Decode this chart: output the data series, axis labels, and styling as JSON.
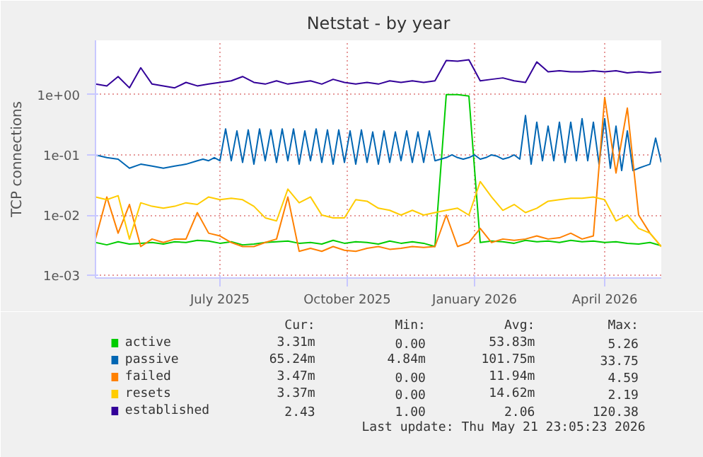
{
  "chart_data": {
    "type": "line",
    "title": "Netstat - by year",
    "ylabel": "TCP connections",
    "log": "y",
    "grid": true,
    "legend": "bottom",
    "xlim": [
      "2025-04-16",
      "2026-05-21"
    ],
    "ylim": [
      0.0009,
      8
    ],
    "xticks": [
      {
        "value": "2025-07-13",
        "label": "July 2025"
      },
      {
        "value": "2025-10-11",
        "label": "October 2025"
      },
      {
        "value": "2026-01-09",
        "label": "January 2026"
      },
      {
        "value": "2026-04-11",
        "label": "April 2026"
      }
    ],
    "yticks": [
      {
        "value": 0.001,
        "label": "1e-03"
      },
      {
        "value": 0.01,
        "label": "1e-02"
      },
      {
        "value": 0.1,
        "label": "1e-01"
      },
      {
        "value": 1,
        "label": "1e+00"
      }
    ],
    "x": [
      "2025-04-16",
      "2025-04-24",
      "2025-05-02",
      "2025-05-10",
      "2025-05-18",
      "2025-05-26",
      "2025-06-03",
      "2025-06-11",
      "2025-06-19",
      "2025-06-27",
      "2025-07-05",
      "2025-07-13",
      "2025-07-21",
      "2025-07-29",
      "2025-08-06",
      "2025-08-14",
      "2025-08-22",
      "2025-08-30",
      "2025-09-07",
      "2025-09-15",
      "2025-09-23",
      "2025-10-01",
      "2025-10-09",
      "2025-10-17",
      "2025-10-25",
      "2025-11-02",
      "2025-11-10",
      "2025-11-18",
      "2025-11-26",
      "2025-12-04",
      "2025-12-12",
      "2025-12-20",
      "2025-12-28",
      "2026-01-05",
      "2026-01-13",
      "2026-01-21",
      "2026-01-29",
      "2026-02-06",
      "2026-02-14",
      "2026-02-22",
      "2026-03-02",
      "2026-03-10",
      "2026-03-18",
      "2026-03-26",
      "2026-04-03",
      "2026-04-11",
      "2026-04-19",
      "2026-04-27",
      "2026-05-05",
      "2026-05-13",
      "2026-05-21"
    ],
    "series": [
      {
        "name": "active",
        "color": "#00cc00",
        "values": [
          0.0035,
          0.0032,
          0.0036,
          0.0033,
          0.0034,
          0.0035,
          0.0033,
          0.0036,
          0.0035,
          0.0038,
          0.0037,
          0.0034,
          0.0036,
          0.0032,
          0.0033,
          0.0035,
          0.0036,
          0.0037,
          0.0034,
          0.0035,
          0.0033,
          0.0038,
          0.0034,
          0.0036,
          0.0035,
          0.0033,
          0.0037,
          0.0034,
          0.0036,
          0.0034,
          0.003,
          1.0,
          1.0,
          0.95,
          0.0035,
          0.0037,
          0.0036,
          0.0034,
          0.0038,
          0.0036,
          0.0037,
          0.0035,
          0.0038,
          0.0036,
          0.0037,
          0.0035,
          0.0036,
          0.0034,
          0.0033,
          0.0035,
          0.0031
        ]
      },
      {
        "name": "passive",
        "color": "#0066b3",
        "x": [
          "2025-04-16",
          "2025-04-24",
          "2025-05-02",
          "2025-05-10",
          "2025-05-18",
          "2025-05-26",
          "2025-06-03",
          "2025-06-11",
          "2025-06-19",
          "2025-06-27",
          "2025-07-01",
          "2025-07-05",
          "2025-07-09",
          "2025-07-13",
          "2025-07-17",
          "2025-07-21",
          "2025-07-25",
          "2025-07-29",
          "2025-08-02",
          "2025-08-06",
          "2025-08-10",
          "2025-08-14",
          "2025-08-18",
          "2025-08-22",
          "2025-08-26",
          "2025-08-30",
          "2025-09-03",
          "2025-09-07",
          "2025-09-11",
          "2025-09-15",
          "2025-09-19",
          "2025-09-23",
          "2025-09-27",
          "2025-10-01",
          "2025-10-05",
          "2025-10-09",
          "2025-10-13",
          "2025-10-17",
          "2025-10-21",
          "2025-10-25",
          "2025-10-29",
          "2025-11-02",
          "2025-11-06",
          "2025-11-10",
          "2025-11-14",
          "2025-11-18",
          "2025-11-22",
          "2025-11-26",
          "2025-11-30",
          "2025-12-04",
          "2025-12-08",
          "2025-12-12",
          "2025-12-16",
          "2025-12-20",
          "2025-12-24",
          "2025-12-28",
          "2026-01-01",
          "2026-01-05",
          "2026-01-09",
          "2026-01-13",
          "2026-01-17",
          "2026-01-21",
          "2026-01-25",
          "2026-01-29",
          "2026-02-02",
          "2026-02-06",
          "2026-02-10",
          "2026-02-14",
          "2026-02-18",
          "2026-02-22",
          "2026-02-26",
          "2026-03-02",
          "2026-03-06",
          "2026-03-10",
          "2026-03-14",
          "2026-03-18",
          "2026-03-22",
          "2026-03-26",
          "2026-03-30",
          "2026-04-03",
          "2026-04-07",
          "2026-04-11",
          "2026-04-15",
          "2026-04-19",
          "2026-04-23",
          "2026-04-27",
          "2026-05-01",
          "2026-05-05",
          "2026-05-09",
          "2026-05-13",
          "2026-05-17",
          "2026-05-21"
        ],
        "values": [
          0.1,
          0.09,
          0.085,
          0.06,
          0.07,
          0.065,
          0.06,
          0.065,
          0.07,
          0.08,
          0.085,
          0.08,
          0.09,
          0.08,
          0.27,
          0.08,
          0.25,
          0.075,
          0.26,
          0.07,
          0.27,
          0.08,
          0.26,
          0.075,
          0.27,
          0.08,
          0.27,
          0.07,
          0.25,
          0.08,
          0.27,
          0.075,
          0.26,
          0.07,
          0.26,
          0.075,
          0.25,
          0.07,
          0.26,
          0.075,
          0.24,
          0.07,
          0.25,
          0.075,
          0.24,
          0.08,
          0.25,
          0.075,
          0.24,
          0.075,
          0.25,
          0.08,
          0.085,
          0.09,
          0.1,
          0.09,
          0.085,
          0.09,
          0.1,
          0.085,
          0.09,
          0.1,
          0.095,
          0.085,
          0.09,
          0.1,
          0.085,
          0.45,
          0.07,
          0.35,
          0.08,
          0.3,
          0.08,
          0.35,
          0.075,
          0.35,
          0.08,
          0.4,
          0.08,
          0.35,
          0.07,
          0.4,
          0.06,
          0.3,
          0.055,
          0.25,
          0.055,
          0.06,
          0.065,
          0.07,
          0.19,
          0.075
        ]
      },
      {
        "name": "failed",
        "color": "#ff8000",
        "values": [
          0.004,
          0.02,
          0.005,
          0.015,
          0.003,
          0.004,
          0.0035,
          0.004,
          0.004,
          0.011,
          0.005,
          0.0045,
          0.0035,
          0.003,
          0.003,
          0.0035,
          0.004,
          0.02,
          0.0025,
          0.0028,
          0.0025,
          0.003,
          0.0026,
          0.0025,
          0.0028,
          0.003,
          0.0027,
          0.0028,
          0.003,
          0.0029,
          0.003,
          0.01,
          0.003,
          0.0035,
          0.006,
          0.0035,
          0.004,
          0.0038,
          0.004,
          0.0045,
          0.004,
          0.0042,
          0.005,
          0.004,
          0.0045,
          0.9,
          0.05,
          0.6,
          0.01,
          0.005,
          0.003
        ]
      },
      {
        "name": "resets",
        "color": "#ffcc00",
        "values": [
          0.02,
          0.018,
          0.021,
          0.004,
          0.016,
          0.014,
          0.013,
          0.014,
          0.016,
          0.015,
          0.02,
          0.018,
          0.019,
          0.018,
          0.014,
          0.009,
          0.008,
          0.027,
          0.016,
          0.02,
          0.01,
          0.009,
          0.009,
          0.018,
          0.017,
          0.013,
          0.012,
          0.01,
          0.012,
          0.01,
          0.011,
          0.012,
          0.013,
          0.01,
          0.036,
          0.02,
          0.012,
          0.015,
          0.011,
          0.013,
          0.017,
          0.018,
          0.019,
          0.019,
          0.02,
          0.018,
          0.008,
          0.01,
          0.006,
          0.005,
          0.003
        ]
      },
      {
        "name": "established",
        "color": "#330099",
        "values": [
          1.5,
          1.4,
          2.0,
          1.3,
          2.8,
          1.5,
          1.4,
          1.3,
          1.6,
          1.4,
          1.5,
          1.6,
          1.7,
          2.0,
          1.6,
          1.5,
          1.7,
          1.5,
          1.6,
          1.7,
          1.5,
          1.8,
          1.6,
          1.5,
          1.6,
          1.5,
          1.7,
          1.6,
          1.7,
          1.6,
          1.7,
          3.7,
          3.6,
          3.8,
          1.7,
          1.8,
          1.9,
          1.7,
          1.6,
          3.5,
          2.4,
          2.5,
          2.4,
          2.4,
          2.5,
          2.4,
          2.5,
          2.3,
          2.4,
          2.3,
          2.4
        ]
      }
    ],
    "annotations": [
      "Cur:",
      "Min:",
      "Avg:",
      "Max:",
      "3.31m",
      "0.00",
      "53.83m",
      "5.26",
      "65.24m",
      "4.84m",
      "101.75m",
      "33.75",
      "3.47m",
      "0.00",
      "11.94m",
      "4.59",
      "3.37m",
      "0.00",
      "14.62m",
      "2.19",
      "2.43",
      "1.00",
      "2.06",
      "120.38",
      "Last update: Thu May 21 23:05:23 2026"
    ]
  }
}
